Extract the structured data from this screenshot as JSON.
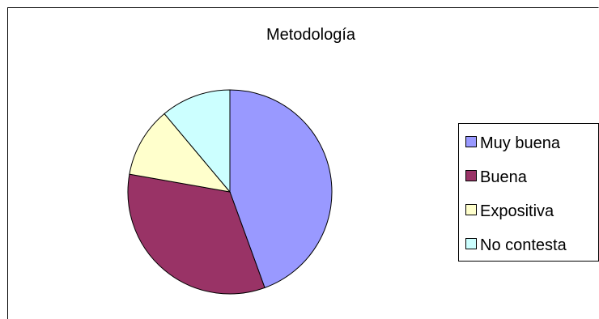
{
  "chart_data": {
    "type": "pie",
    "title": "Metodología",
    "categories": [
      "Muy buena",
      "Buena",
      "Expositiva",
      "No contesta"
    ],
    "values": [
      44.4,
      33.3,
      11.1,
      11.1
    ],
    "colors": [
      "#9999ff",
      "#993366",
      "#ffffcc",
      "#ccffff"
    ],
    "legend_position": "right",
    "start_angle_deg": 0,
    "direction": "clockwise"
  }
}
